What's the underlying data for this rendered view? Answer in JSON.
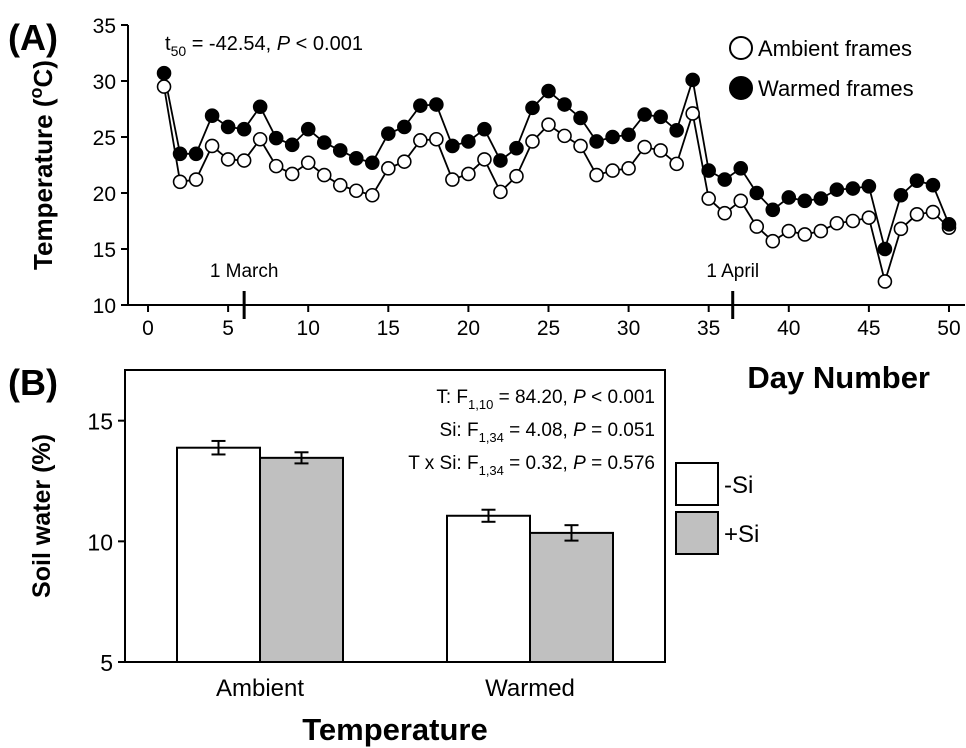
{
  "chart_data": [
    {
      "type": "line",
      "panel_label": "(A)",
      "stat": [
        "t",
        "50",
        " = -42.54, ",
        "P",
        " < 0.001"
      ],
      "x_label": "Day Number",
      "y_label": [
        "Temperature (",
        "o",
        "C)"
      ],
      "x": [
        1,
        2,
        3,
        4,
        5,
        6,
        7,
        8,
        9,
        10,
        11,
        12,
        13,
        14,
        15,
        16,
        17,
        18,
        19,
        20,
        21,
        22,
        23,
        24,
        25,
        26,
        27,
        28,
        29,
        30,
        31,
        32,
        33,
        34,
        35,
        36,
        37,
        38,
        39,
        40,
        41,
        42,
        43,
        44,
        45,
        46,
        47,
        48,
        49,
        50
      ],
      "series": [
        {
          "name": "Ambient frames",
          "color": "#000000",
          "marker_fill": "#ffffff",
          "values": [
            29.5,
            21.0,
            21.2,
            24.2,
            23.0,
            22.9,
            24.8,
            22.4,
            21.7,
            22.7,
            21.6,
            20.7,
            20.2,
            19.8,
            22.2,
            22.8,
            24.7,
            24.8,
            21.2,
            21.7,
            23.0,
            20.1,
            21.5,
            24.6,
            26.1,
            25.1,
            24.2,
            21.6,
            22.0,
            22.2,
            24.1,
            23.8,
            22.6,
            27.1,
            19.5,
            18.2,
            19.3,
            17.0,
            15.7,
            16.6,
            16.3,
            16.6,
            17.3,
            17.5,
            17.8,
            12.1,
            16.8,
            18.1,
            18.3,
            16.9
          ]
        },
        {
          "name": "Warmed frames",
          "color": "#000000",
          "marker_fill": "#000000",
          "values": [
            30.7,
            23.5,
            23.5,
            26.9,
            25.9,
            25.7,
            27.7,
            24.9,
            24.3,
            25.7,
            24.5,
            23.8,
            23.1,
            22.7,
            25.3,
            25.9,
            27.8,
            27.9,
            24.2,
            24.6,
            25.7,
            22.9,
            24.0,
            27.6,
            29.1,
            27.9,
            26.7,
            24.6,
            25.0,
            25.2,
            27.0,
            26.8,
            25.6,
            30.1,
            22.0,
            21.2,
            22.2,
            20.0,
            18.5,
            19.6,
            19.3,
            19.5,
            20.3,
            20.4,
            20.6,
            15.0,
            19.8,
            21.1,
            20.7,
            17.2
          ]
        }
      ],
      "xlim": [
        -1.25,
        51
      ],
      "ylim": [
        10,
        35
      ],
      "xticks": [
        0,
        5,
        10,
        15,
        20,
        25,
        30,
        35,
        40,
        45,
        50
      ],
      "yticks": [
        10,
        15,
        20,
        25,
        30,
        35
      ],
      "legend": "upper right",
      "date_markers": [
        {
          "x": 6,
          "label": "1 March"
        },
        {
          "x": 36.5,
          "label": "1 April"
        }
      ]
    },
    {
      "type": "bar",
      "panel_label": "(B)",
      "stats": [
        [
          "T: F",
          "1,10",
          " = 84.20, ",
          "P",
          " < 0.001"
        ],
        [
          "Si: F",
          "1,34",
          " = 4.08, ",
          "P",
          " = 0.051"
        ],
        [
          "T x Si: F",
          "1,34",
          " = 0.32, ",
          "P",
          " = 0.576"
        ]
      ],
      "x_label": "Temperature",
      "y_label": "Soil water (%)",
      "categories": [
        "Ambient",
        "Warmed"
      ],
      "series": [
        {
          "name": "-Si",
          "color": "#ffffff",
          "values": [
            13.88,
            11.06
          ],
          "errors": [
            0.28,
            0.25
          ]
        },
        {
          "name": "+Si",
          "color": "#c0c0c0",
          "values": [
            13.46,
            10.35
          ],
          "errors": [
            0.23,
            0.32
          ]
        }
      ],
      "ylim": [
        5,
        17.1
      ],
      "yticks": [
        5,
        10,
        15
      ],
      "legend": "right"
    }
  ]
}
